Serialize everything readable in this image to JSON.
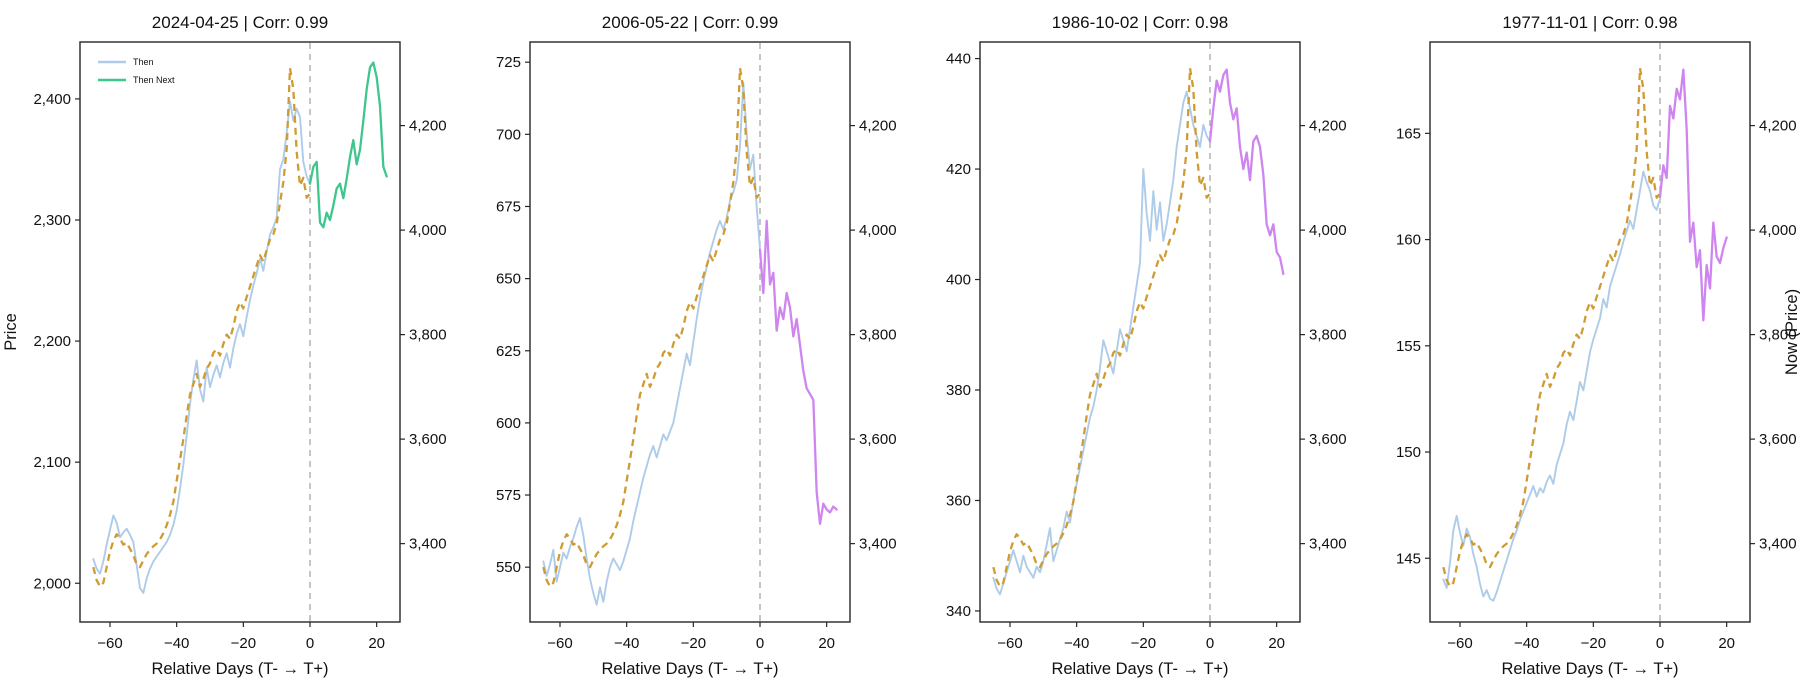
{
  "figure": {
    "ylabel_left": "Price",
    "ylabel_right": "Now (Price)",
    "xlabel": "Relative Days (T- → T+)",
    "xtick_values": [
      -60,
      -40,
      -20,
      0,
      20
    ],
    "xtick_labels": [
      "−60",
      "−40",
      "−20",
      "0",
      "20"
    ],
    "right_axis": {
      "ylim": [
        3250,
        4360
      ],
      "tick_values": [
        3400,
        3600,
        3800,
        4000,
        4200
      ],
      "tick_labels": [
        "3,400",
        "3,600",
        "3,800",
        "4,000",
        "4,200"
      ]
    },
    "legend": [
      {
        "label": "Then",
        "color_key": "then"
      },
      {
        "label": "Then Next",
        "color_key": "next_green"
      }
    ],
    "colors": {
      "then": "#aecce9",
      "now": "#cf9b33",
      "next_green": "#3fc68c",
      "next_purple": "#cf85ef",
      "vline": "#a6a6a6",
      "axis": "#262626",
      "text": "#111111"
    }
  },
  "chart_data": [
    {
      "type": "line",
      "title": "2024-04-25 | Corr: 0.99",
      "date": "2024-04-25",
      "corr": 0.99,
      "show_legend": true,
      "show_ylabel_left": true,
      "show_ylabel_right": false,
      "xlim": [
        -69,
        27
      ],
      "vline_x": 0,
      "ylim_left": [
        1968,
        2447
      ],
      "ytick_values": [
        2000,
        2100,
        2200,
        2300,
        2400
      ],
      "ytick_labels": [
        "2,000",
        "2,100",
        "2,200",
        "2,300",
        "2,400"
      ],
      "series": [
        {
          "name": "Then",
          "axis": "left",
          "style": "solid",
          "color_key": "then",
          "x_start": -65,
          "values": [
            2020,
            2012,
            2008,
            2018,
            2032,
            2044,
            2056,
            2050,
            2038,
            2042,
            2045,
            2040,
            2034,
            2015,
            1996,
            1992,
            2004,
            2012,
            2018,
            2022,
            2026,
            2030,
            2034,
            2040,
            2048,
            2060,
            2078,
            2098,
            2122,
            2148,
            2168,
            2184,
            2160,
            2150,
            2178,
            2162,
            2172,
            2180,
            2170,
            2182,
            2190,
            2178,
            2194,
            2206,
            2214,
            2204,
            2220,
            2234,
            2246,
            2256,
            2268,
            2258,
            2274,
            2288,
            2294,
            2302,
            2342,
            2350,
            2372,
            2398,
            2382,
            2392,
            2385,
            2348,
            2336,
            2330
          ]
        },
        {
          "name": "Now",
          "axis": "right",
          "style": "dashed",
          "color_key": "now",
          "x_start": -65,
          "values": [
            3355,
            3330,
            3318,
            3325,
            3355,
            3385,
            3405,
            3418,
            3410,
            3398,
            3402,
            3390,
            3378,
            3360,
            3355,
            3368,
            3380,
            3388,
            3395,
            3400,
            3408,
            3420,
            3435,
            3455,
            3480,
            3520,
            3560,
            3600,
            3645,
            3685,
            3705,
            3725,
            3700,
            3715,
            3735,
            3745,
            3765,
            3772,
            3760,
            3782,
            3800,
            3792,
            3815,
            3845,
            3862,
            3850,
            3872,
            3892,
            3912,
            3932,
            3952,
            3940,
            3962,
            3982,
            3992,
            4012,
            4052,
            4092,
            4155,
            4310,
            4270,
            4150,
            4085,
            4100,
            4062,
            4070
          ]
        },
        {
          "name": "Then Next",
          "axis": "left",
          "style": "solid",
          "color_key": "next_green",
          "x_start": 0,
          "values": [
            2330,
            2344,
            2348,
            2298,
            2294,
            2306,
            2300,
            2312,
            2326,
            2330,
            2318,
            2334,
            2352,
            2366,
            2346,
            2358,
            2382,
            2408,
            2426,
            2430,
            2418,
            2394,
            2344,
            2336
          ]
        }
      ]
    },
    {
      "type": "line",
      "title": "2006-05-22 | Corr: 0.99",
      "date": "2006-05-22",
      "corr": 0.99,
      "show_legend": false,
      "show_ylabel_left": false,
      "show_ylabel_right": false,
      "xlim": [
        -69,
        27
      ],
      "vline_x": 0,
      "ylim_left": [
        531,
        732
      ],
      "ytick_values": [
        550,
        575,
        600,
        625,
        650,
        675,
        700,
        725
      ],
      "ytick_labels": [
        "550",
        "575",
        "600",
        "625",
        "650",
        "675",
        "700",
        "725"
      ],
      "series": [
        {
          "name": "Then",
          "axis": "left",
          "style": "solid",
          "color_key": "then",
          "x_start": -65,
          "values": [
            552,
            547,
            551,
            556,
            545,
            550,
            555,
            553,
            557,
            560,
            564,
            567,
            561,
            553,
            546,
            541,
            537,
            543,
            538,
            545,
            550,
            553,
            551,
            549,
            552,
            556,
            560,
            566,
            571,
            576,
            581,
            585,
            589,
            592,
            588,
            592,
            596,
            594,
            597,
            600,
            606,
            612,
            618,
            624,
            620,
            628,
            636,
            643,
            649,
            654,
            659,
            663,
            667,
            670,
            667,
            671,
            677,
            680,
            684,
            696,
            718,
            700,
            688,
            693,
            675,
            660
          ]
        },
        {
          "name": "Now",
          "axis": "right",
          "style": "dashed",
          "color_key": "now",
          "x_start": -65,
          "values": [
            3355,
            3330,
            3318,
            3325,
            3355,
            3385,
            3405,
            3418,
            3410,
            3398,
            3402,
            3390,
            3378,
            3360,
            3355,
            3368,
            3380,
            3388,
            3395,
            3400,
            3408,
            3420,
            3435,
            3455,
            3480,
            3520,
            3560,
            3600,
            3645,
            3685,
            3705,
            3725,
            3700,
            3715,
            3735,
            3745,
            3765,
            3772,
            3760,
            3782,
            3800,
            3792,
            3815,
            3845,
            3862,
            3850,
            3872,
            3892,
            3912,
            3932,
            3952,
            3940,
            3962,
            3982,
            3992,
            4012,
            4052,
            4092,
            4155,
            4310,
            4270,
            4150,
            4085,
            4100,
            4062,
            4070
          ]
        },
        {
          "name": "Then Next",
          "axis": "left",
          "style": "solid",
          "color_key": "next_purple",
          "x_start": 0,
          "values": [
            660,
            645,
            670,
            648,
            652,
            632,
            640,
            636,
            645,
            640,
            630,
            636,
            627,
            618,
            612,
            610,
            608,
            576,
            565,
            572,
            570,
            569,
            571,
            570
          ]
        }
      ]
    },
    {
      "type": "line",
      "title": "1986-10-02 | Corr: 0.98",
      "date": "1986-10-02",
      "corr": 0.98,
      "show_legend": false,
      "show_ylabel_left": false,
      "show_ylabel_right": false,
      "xlim": [
        -69,
        27
      ],
      "vline_x": 0,
      "ylim_left": [
        338,
        443
      ],
      "ytick_values": [
        340,
        360,
        380,
        400,
        420,
        440
      ],
      "ytick_labels": [
        "340",
        "360",
        "380",
        "400",
        "420",
        "440"
      ],
      "series": [
        {
          "name": "Then",
          "axis": "left",
          "style": "solid",
          "color_key": "then",
          "x_start": -65,
          "values": [
            346,
            344,
            343,
            345,
            347,
            349,
            351,
            349,
            347,
            350,
            348,
            347,
            346,
            348,
            347,
            349,
            352,
            355,
            349,
            351,
            353,
            355,
            358,
            356,
            360,
            363,
            366,
            369,
            372,
            375,
            377,
            380,
            384,
            389,
            387,
            385,
            383,
            387,
            391,
            389,
            387,
            391,
            395,
            399,
            403,
            420,
            412,
            407,
            416,
            409,
            414,
            407,
            410,
            414,
            418,
            424,
            428,
            432,
            434,
            431,
            428,
            426,
            424,
            428,
            426,
            425
          ]
        },
        {
          "name": "Now",
          "axis": "right",
          "style": "dashed",
          "color_key": "now",
          "x_start": -65,
          "values": [
            3355,
            3330,
            3318,
            3325,
            3355,
            3385,
            3405,
            3418,
            3410,
            3398,
            3402,
            3390,
            3378,
            3360,
            3355,
            3368,
            3380,
            3388,
            3395,
            3400,
            3408,
            3420,
            3435,
            3455,
            3480,
            3520,
            3560,
            3600,
            3645,
            3685,
            3705,
            3725,
            3700,
            3715,
            3735,
            3745,
            3765,
            3772,
            3760,
            3782,
            3800,
            3792,
            3815,
            3845,
            3862,
            3850,
            3872,
            3892,
            3912,
            3932,
            3952,
            3940,
            3962,
            3982,
            3992,
            4012,
            4052,
            4092,
            4155,
            4310,
            4270,
            4150,
            4085,
            4100,
            4062,
            4070
          ]
        },
        {
          "name": "Then Next",
          "axis": "left",
          "style": "solid",
          "color_key": "next_purple",
          "x_start": 0,
          "values": [
            425,
            431,
            436,
            434,
            437,
            438,
            432,
            429,
            431,
            424,
            420,
            423,
            418,
            425,
            426,
            424,
            419,
            410,
            408,
            410,
            405,
            404,
            401
          ]
        }
      ]
    },
    {
      "type": "line",
      "title": "1977-11-01 | Corr: 0.98",
      "date": "1977-11-01",
      "corr": 0.98,
      "show_legend": false,
      "show_ylabel_left": false,
      "show_ylabel_right": true,
      "xlim": [
        -69,
        27
      ],
      "vline_x": 0,
      "ylim_left": [
        142,
        169.3
      ],
      "ytick_values": [
        145,
        150,
        155,
        160,
        165
      ],
      "ytick_labels": [
        "145",
        "150",
        "155",
        "160",
        "165"
      ],
      "series": [
        {
          "name": "Then",
          "axis": "left",
          "style": "solid",
          "color_key": "then",
          "x_start": -65,
          "values": [
            144.0,
            143.6,
            144.8,
            146.3,
            147.0,
            146.2,
            145.6,
            146.4,
            146.0,
            145.2,
            144.6,
            143.8,
            143.2,
            143.5,
            143.1,
            143.0,
            143.4,
            143.9,
            144.4,
            144.9,
            145.4,
            145.9,
            146.3,
            146.8,
            147.2,
            147.6,
            148.0,
            148.4,
            147.9,
            148.3,
            148.1,
            148.6,
            148.9,
            148.5,
            149.4,
            149.9,
            150.4,
            151.3,
            151.9,
            151.5,
            152.4,
            153.3,
            152.9,
            153.8,
            154.7,
            155.3,
            155.8,
            156.3,
            157.2,
            156.8,
            157.8,
            158.3,
            158.8,
            159.3,
            159.9,
            160.4,
            160.9,
            160.5,
            161.4,
            162.3,
            163.2,
            162.7,
            162.3,
            161.6,
            161.4,
            161.9
          ]
        },
        {
          "name": "Now",
          "axis": "right",
          "style": "dashed",
          "color_key": "now",
          "x_start": -65,
          "values": [
            3355,
            3330,
            3318,
            3325,
            3355,
            3385,
            3405,
            3418,
            3410,
            3398,
            3402,
            3390,
            3378,
            3360,
            3355,
            3368,
            3380,
            3388,
            3395,
            3400,
            3408,
            3420,
            3435,
            3455,
            3480,
            3520,
            3560,
            3600,
            3645,
            3685,
            3705,
            3725,
            3700,
            3715,
            3735,
            3745,
            3765,
            3772,
            3760,
            3782,
            3800,
            3792,
            3815,
            3845,
            3862,
            3850,
            3872,
            3892,
            3912,
            3932,
            3952,
            3940,
            3962,
            3982,
            3992,
            4012,
            4052,
            4092,
            4155,
            4310,
            4270,
            4150,
            4085,
            4100,
            4062,
            4070
          ]
        },
        {
          "name": "Then Next",
          "axis": "left",
          "style": "solid",
          "color_key": "next_purple",
          "x_start": 0,
          "values": [
            162.0,
            163.5,
            162.9,
            166.3,
            165.7,
            167.1,
            166.6,
            168.0,
            165.2,
            159.9,
            160.8,
            158.7,
            159.5,
            156.2,
            158.8,
            157.7,
            160.8,
            159.2,
            158.9,
            159.6,
            160.1
          ]
        }
      ]
    }
  ]
}
